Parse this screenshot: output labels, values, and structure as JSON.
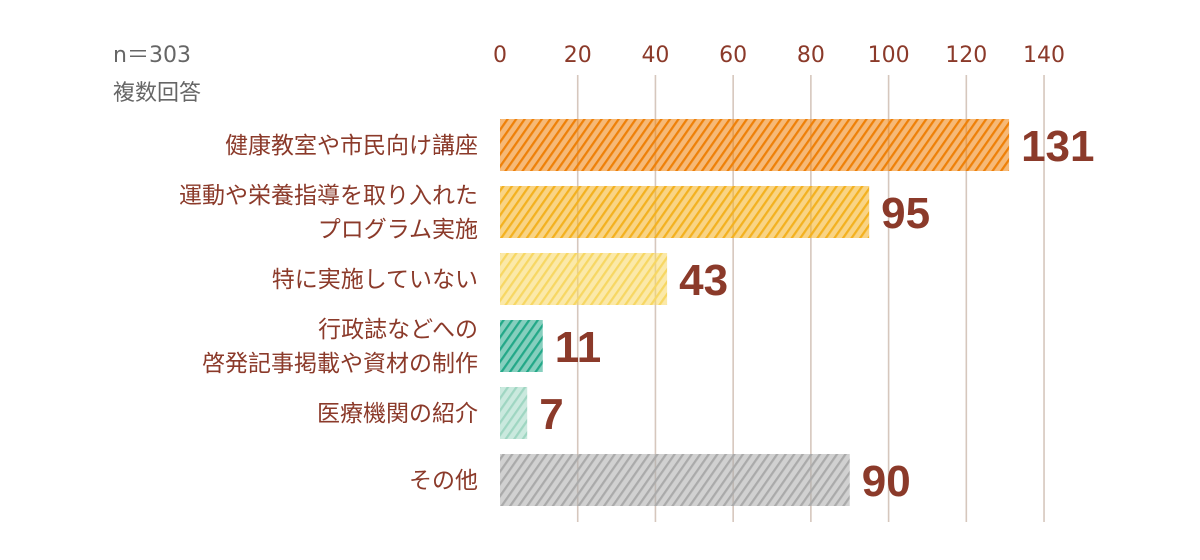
{
  "notes": {
    "sample": "n＝303",
    "multi": "複数回答"
  },
  "chart_data": {
    "type": "bar",
    "orientation": "horizontal",
    "categories": [
      [
        "健康教室や市民向け講座"
      ],
      [
        "運動や栄養指導を取り入れた",
        "プログラム実施"
      ],
      [
        "特に実施していない"
      ],
      [
        "行政誌などへの",
        "啓発記事掲載や資材の制作"
      ],
      [
        "医療機関の紹介"
      ],
      [
        "その他"
      ]
    ],
    "values": [
      131,
      95,
      43,
      11,
      7,
      90
    ],
    "value_labels": [
      "131",
      "95",
      "43",
      "11",
      "7",
      "90"
    ],
    "colors": [
      "#ee8008",
      "#f3b120",
      "#f7d763",
      "#23a888",
      "#9fd6c2",
      "#aaaaaa"
    ],
    "xlim": [
      0,
      140
    ],
    "xticks": [
      "0",
      "20",
      "40",
      "60",
      "80",
      "100",
      "120",
      "140"
    ],
    "grid": true,
    "bar_style": "hatched",
    "gridline_color": "#d6c7bd",
    "text_color": "#8b3a2a"
  }
}
